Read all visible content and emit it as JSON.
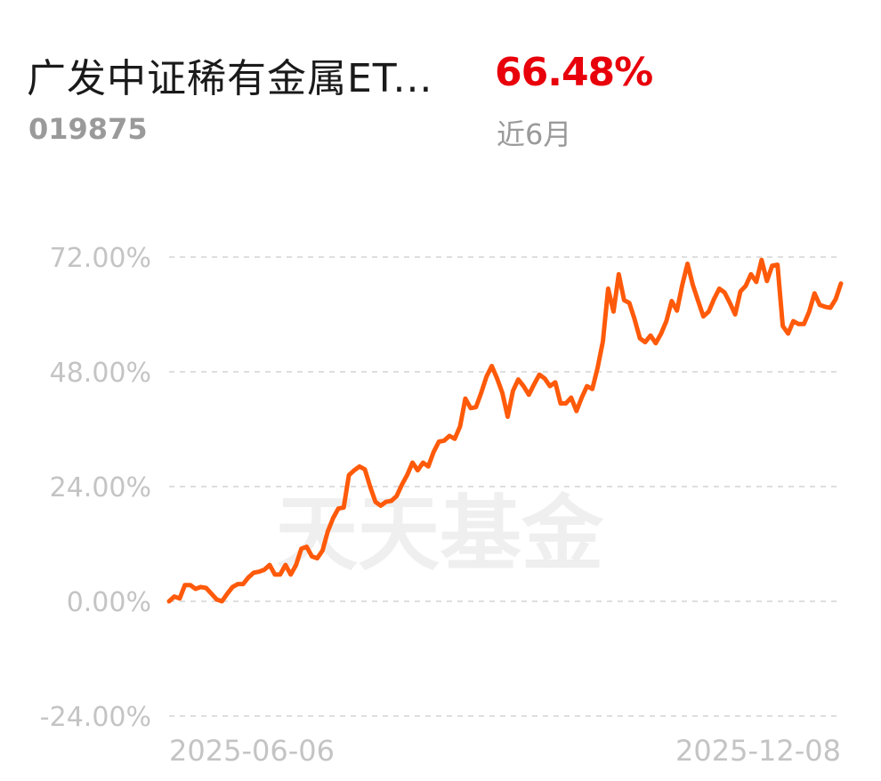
{
  "header": {
    "fund_name": "广发中证稀有金属ET...",
    "fund_code": "019875",
    "return_value": "66.48%",
    "return_period": "近6月"
  },
  "watermark": "天天基金",
  "colors": {
    "line": "#ff5a0a",
    "return": "#e8000b",
    "grid": "#dedede",
    "tick_text": "#c4c4c4",
    "watermark": "#efefef"
  },
  "chart_data": {
    "type": "line",
    "title": "",
    "xlabel": "",
    "ylabel": "",
    "ylim": [
      -24,
      72
    ],
    "yticks": [
      72,
      48,
      24,
      0,
      -24
    ],
    "ytick_labels": [
      "72.00%",
      "48.00%",
      "24.00%",
      "0.00%",
      "-24.00%"
    ],
    "x_range": [
      "2025-06-06",
      "2025-12-08"
    ],
    "xtick_labels": [
      "2025-06-06",
      "2025-12-08"
    ],
    "grid": true,
    "legend": "none",
    "series": [
      {
        "values": [
          0.0,
          1.0,
          0.6,
          3.4,
          3.4,
          2.6,
          3.0,
          2.8,
          1.6,
          0.4,
          0.0,
          1.6,
          3.0,
          3.6,
          3.6,
          5.0,
          6.0,
          6.2,
          6.6,
          7.6,
          5.6,
          5.6,
          7.6,
          5.6,
          7.6,
          11.0,
          11.4,
          9.4,
          9.0,
          10.6,
          14.6,
          17.4,
          19.4,
          19.6,
          26.4,
          27.4,
          28.2,
          27.6,
          24.0,
          20.8,
          20.0,
          20.8,
          21.0,
          22.0,
          24.4,
          26.4,
          29.0,
          27.4,
          29.0,
          28.2,
          31.2,
          33.4,
          33.6,
          34.6,
          34.0,
          36.6,
          42.4,
          40.4,
          40.6,
          43.6,
          47.0,
          49.2,
          46.6,
          43.6,
          38.6,
          44.0,
          46.4,
          45.0,
          43.2,
          45.4,
          47.4,
          46.6,
          45.0,
          45.8,
          41.4,
          41.4,
          42.6,
          39.8,
          42.6,
          45.0,
          44.4,
          48.8,
          54.4,
          65.4,
          60.6,
          68.4,
          63.0,
          62.4,
          59.0,
          55.0,
          54.2,
          55.6,
          54.0,
          56.0,
          58.6,
          62.8,
          60.8,
          66.2,
          70.6,
          66.2,
          62.8,
          59.6,
          60.6,
          63.2,
          65.4,
          64.6,
          62.4,
          60.0,
          64.8,
          66.0,
          68.4,
          66.8,
          71.4,
          67.0,
          70.2,
          70.4,
          57.6,
          56.0,
          58.6,
          58.0,
          58.0,
          60.6,
          64.4,
          62.0,
          61.6,
          61.4,
          63.2,
          66.48
        ]
      }
    ]
  }
}
